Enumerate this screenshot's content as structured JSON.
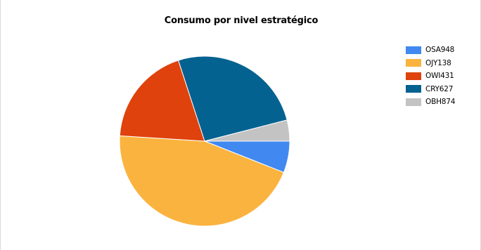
{
  "chart_data": {
    "type": "pie",
    "title": "Consumo por nivel estratégico",
    "legend_position": "right",
    "slices": [
      {
        "label": "OSA948",
        "value": 6.0,
        "color": "#4189F1"
      },
      {
        "label": "OJY138",
        "value": 45.0,
        "color": "#FBB33F"
      },
      {
        "label": "OWI431",
        "value": 19.0,
        "color": "#DF420D"
      },
      {
        "label": "CRY627",
        "value": 26.0,
        "color": "#046290"
      },
      {
        "label": "OBH874",
        "value": 4.0,
        "color": "#C3C3C3"
      }
    ]
  }
}
